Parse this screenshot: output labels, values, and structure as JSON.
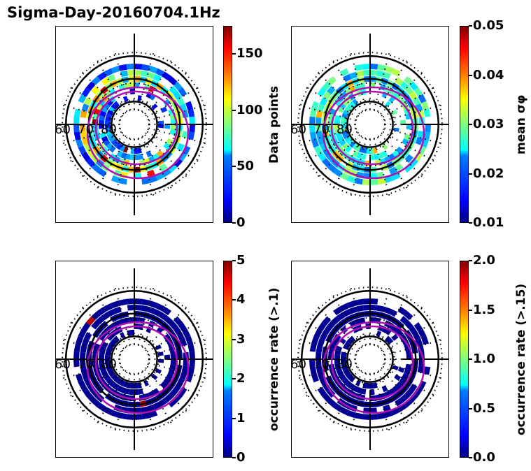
{
  "title": "Sigma-Day-20160704.1Hz",
  "chart_data": [
    {
      "type": "heatmap",
      "projection": "polar (magnetic latitude / local time dial)",
      "latitude_labels": [
        "60",
        "70",
        "80"
      ],
      "colorbar": {
        "label": "Data points",
        "range": [
          0,
          175
        ],
        "ticks": [
          "0",
          "50",
          "100",
          "150"
        ],
        "colormap": "jet"
      },
      "overlays": [
        "magenta oval boundaries (2)",
        "black latitude circles",
        "dotted grid"
      ]
    },
    {
      "type": "heatmap",
      "projection": "polar",
      "latitude_labels": [
        "60",
        "70",
        "80"
      ],
      "colorbar": {
        "label": "mean σφ",
        "range": [
          0.01,
          0.05
        ],
        "ticks": [
          "0.01",
          "0.02",
          "0.03",
          "0.04",
          "0.05"
        ],
        "colormap": "jet"
      },
      "overlays": [
        "magenta oval boundaries (2)",
        "black latitude circles",
        "dotted grid"
      ]
    },
    {
      "type": "heatmap",
      "projection": "polar",
      "latitude_labels": [
        "60",
        "70",
        "80"
      ],
      "colorbar": {
        "label": "occurrence rate (>.1)",
        "range": [
          0,
          5
        ],
        "ticks": [
          "0",
          "1",
          "2",
          "3",
          "4",
          "5"
        ],
        "colormap": "jet"
      },
      "overlays": [
        "magenta oval boundaries (2)",
        "black latitude circles",
        "dotted grid"
      ]
    },
    {
      "type": "heatmap",
      "projection": "polar",
      "latitude_labels": [
        "60",
        "70",
        "80"
      ],
      "colorbar": {
        "label": "occurrence rate (>.15)",
        "range": [
          0,
          2
        ],
        "ticks": [
          "0.0",
          "0.5",
          "1.0",
          "1.5",
          "2.0"
        ],
        "colormap": "jet"
      },
      "overlays": [
        "magenta oval boundaries (2)",
        "black latitude circles",
        "dotted grid"
      ]
    }
  ]
}
